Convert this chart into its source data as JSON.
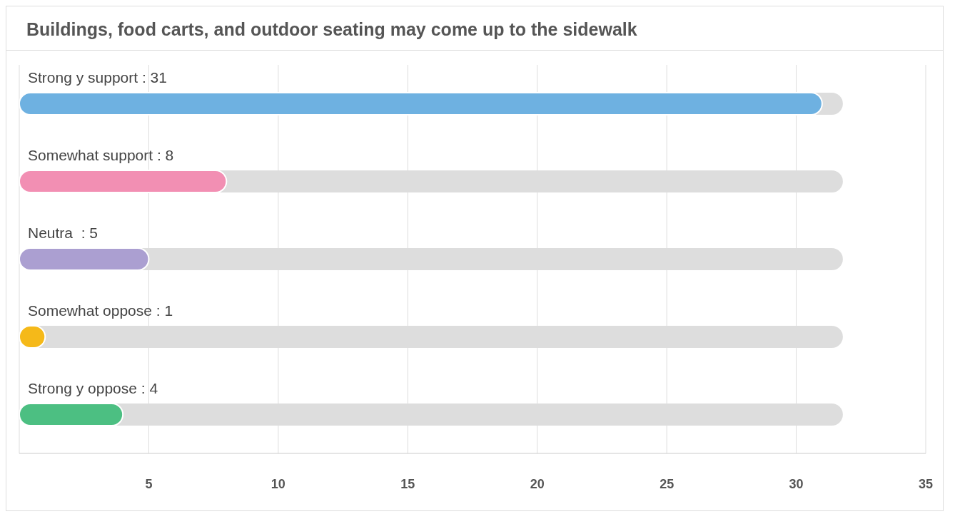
{
  "chart_data": {
    "type": "bar",
    "orientation": "horizontal",
    "title": "Buildings, food carts, and outdoor seating may come up to the sidewalk",
    "categories": [
      "Strong y support : 31",
      "Somewhat support : 8",
      "Neutra  : 5",
      "Somewhat oppose : 1",
      "Strong y oppose : 4"
    ],
    "values": [
      31,
      8,
      5,
      1,
      4
    ],
    "colors": [
      "#6eb1e1",
      "#f28fb3",
      "#ab9fd1",
      "#f5b919",
      "#4cbf82"
    ],
    "xlim": [
      0,
      35
    ],
    "xticks": [
      5,
      10,
      15,
      20,
      25,
      30,
      35
    ],
    "grid": "x",
    "legend": false
  }
}
